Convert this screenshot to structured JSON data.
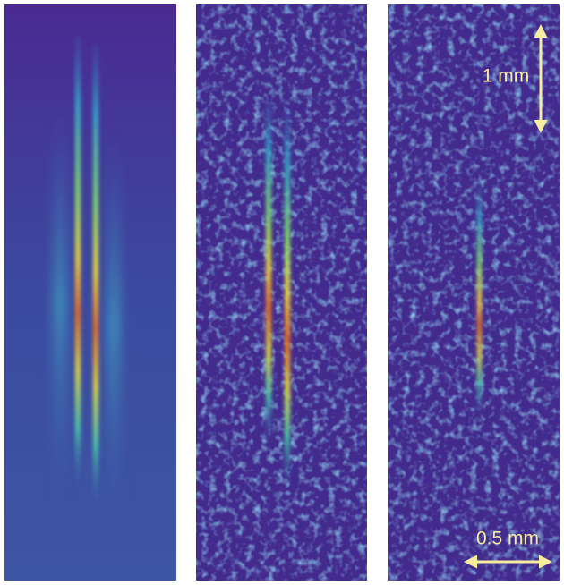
{
  "scale_bars": {
    "vertical": {
      "label": "1 mm"
    },
    "horizontal": {
      "label": "0.5 mm"
    }
  }
}
